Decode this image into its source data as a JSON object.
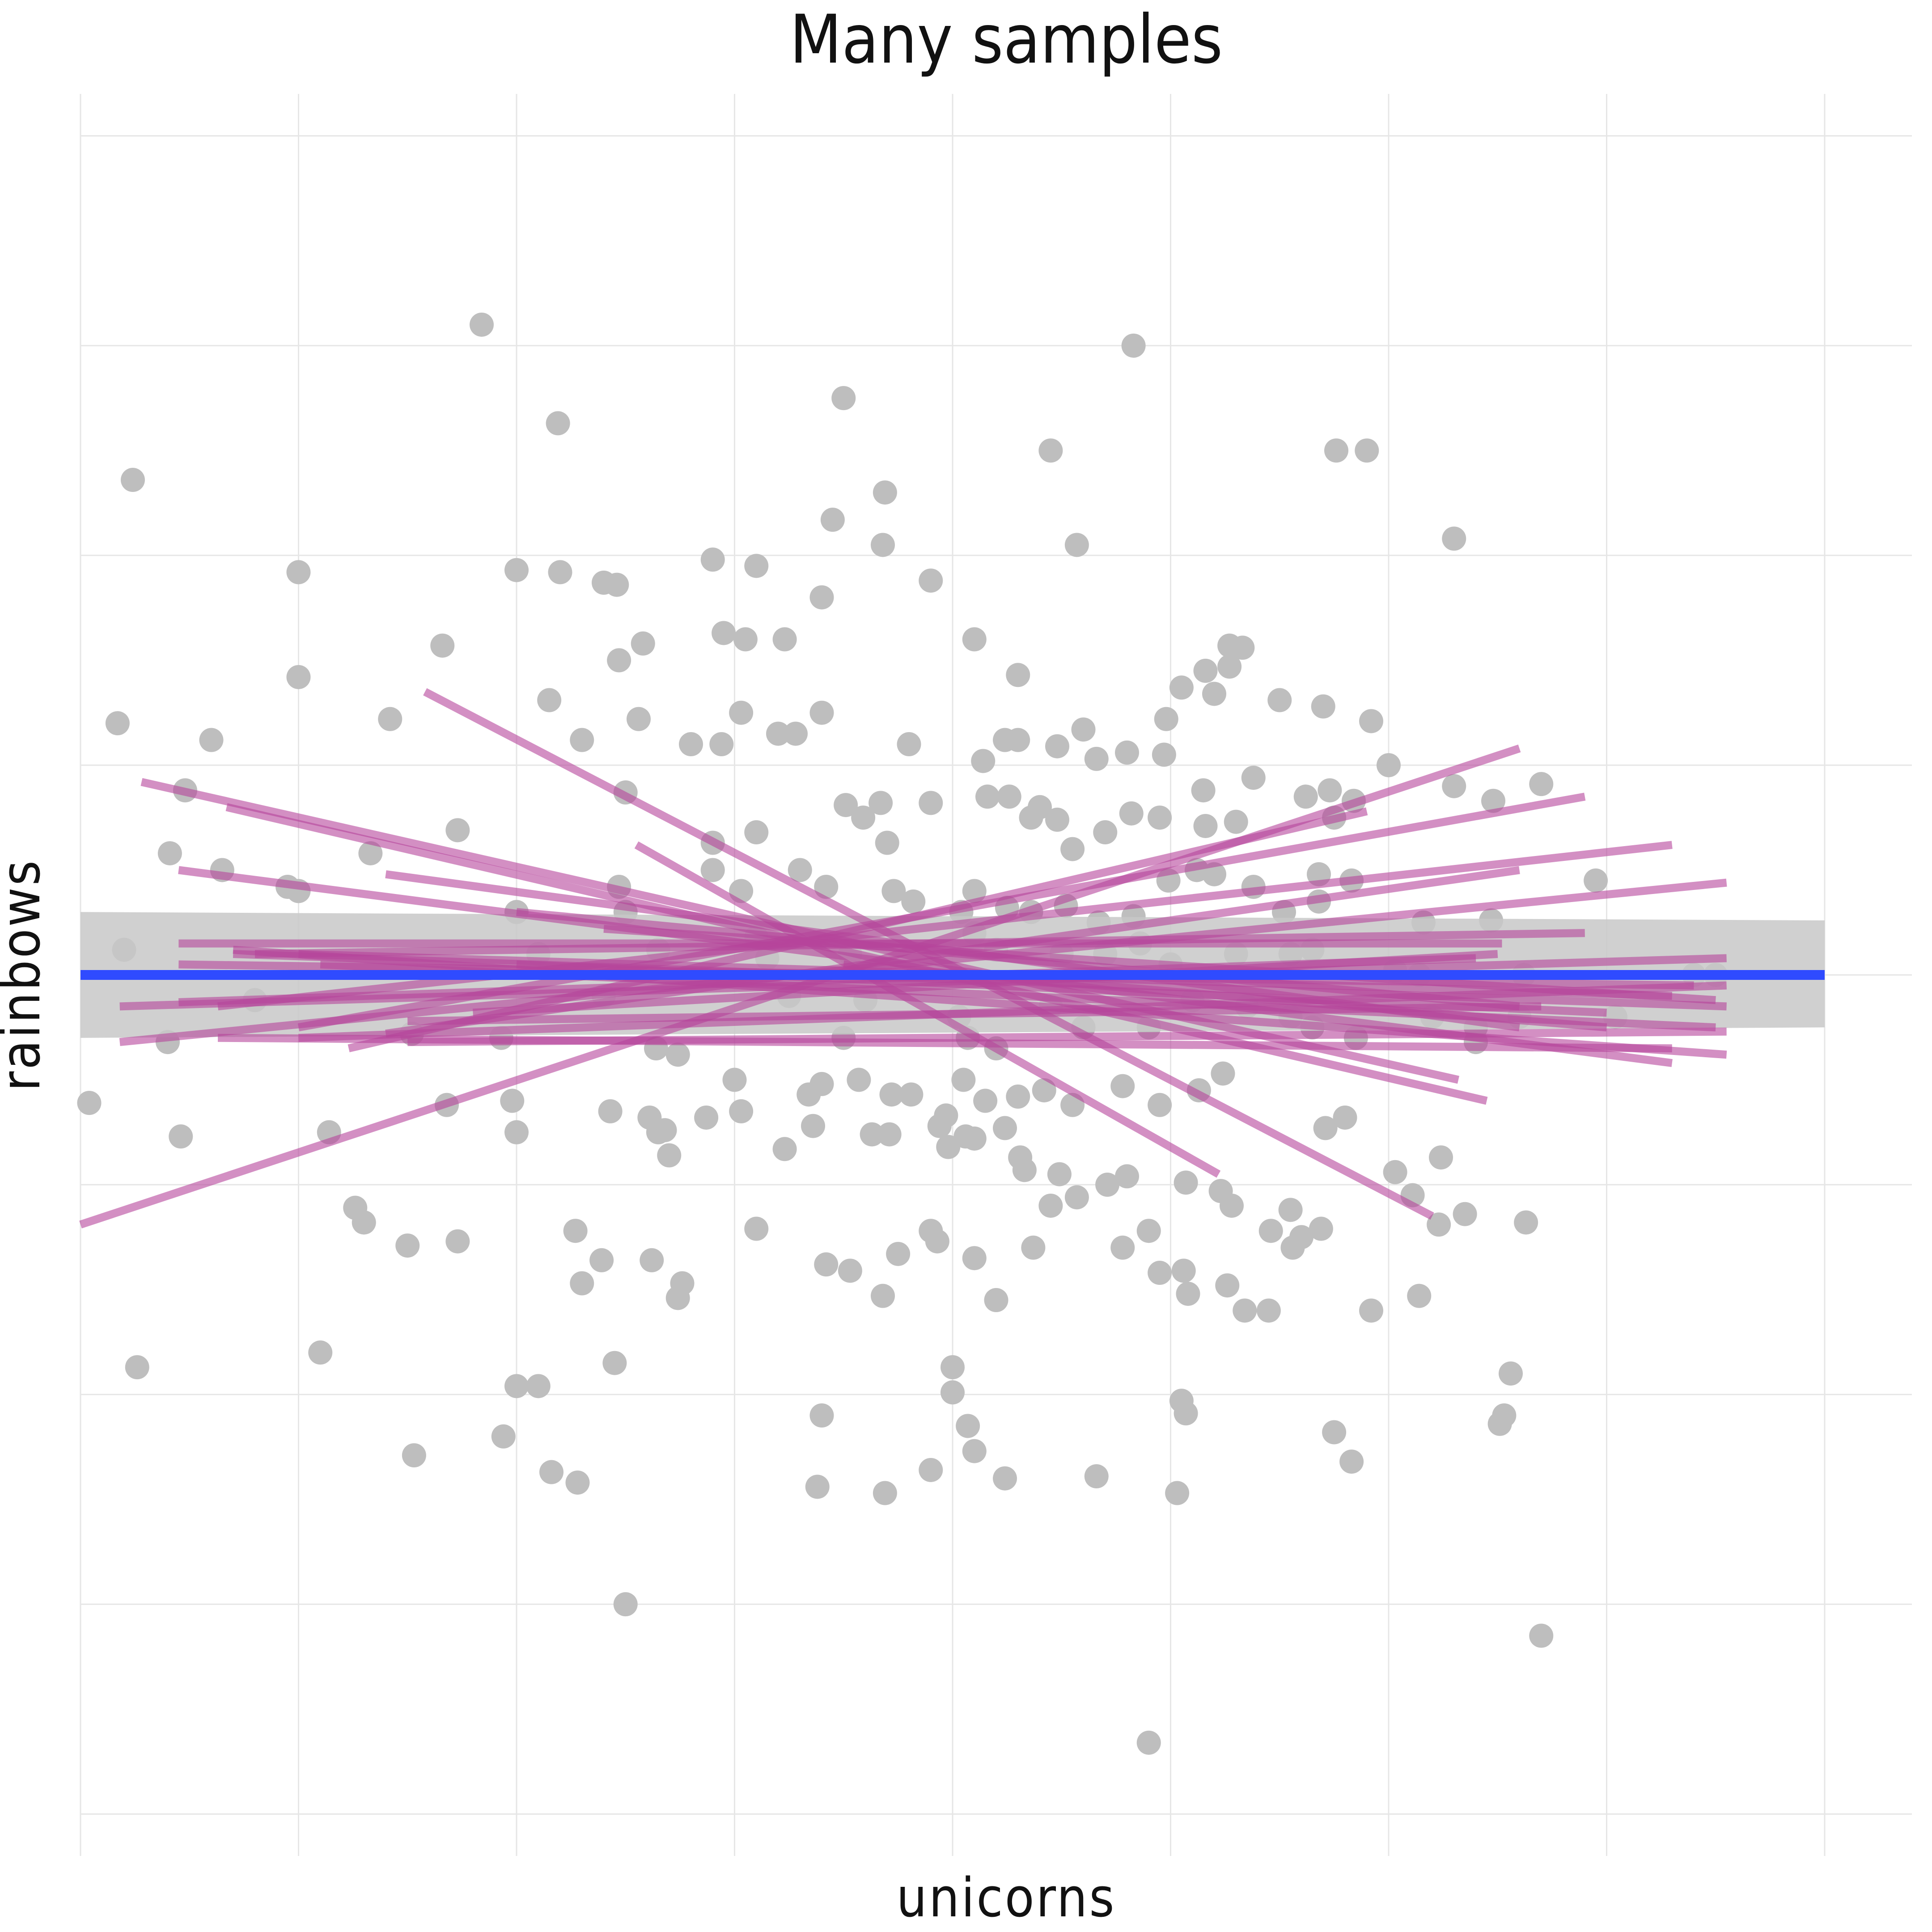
{
  "colors": {
    "points": "#bebebe",
    "sample_lines": "#b5459b",
    "fit_line": "#2f4bff",
    "confidence_band": "#c8c8c8",
    "gridlines": "#e6e6e6",
    "background": "#ffffff"
  },
  "chart_data": {
    "type": "scatter",
    "title": "Many samples",
    "xlabel": "unicorns",
    "ylabel": "rainbows",
    "tick_labels_shown": false,
    "grid": true,
    "xlim": [
      -4.0,
      4.4
    ],
    "ylim": [
      -4.2,
      4.2
    ],
    "x_gridlines": [
      -4,
      -3,
      -2,
      -1,
      0,
      1,
      2,
      3,
      4
    ],
    "y_gridlines": [
      -4,
      -3,
      -2,
      -1,
      0,
      1,
      2,
      3,
      4
    ],
    "points": [
      [
        -2.16,
        3.1
      ],
      [
        -0.5,
        2.75
      ],
      [
        0.83,
        3.0
      ],
      [
        -3.76,
        2.36
      ],
      [
        -1.81,
        2.63
      ],
      [
        -0.31,
        2.3
      ],
      [
        -0.55,
        2.17
      ],
      [
        -0.32,
        2.05
      ],
      [
        0.45,
        2.5
      ],
      [
        1.76,
        2.5
      ],
      [
        1.9,
        2.5
      ],
      [
        -3.0,
        1.92
      ],
      [
        -2.0,
        1.93
      ],
      [
        -1.8,
        1.92
      ],
      [
        -1.6,
        1.87
      ],
      [
        -1.54,
        1.86
      ],
      [
        -1.1,
        1.98
      ],
      [
        -0.9,
        1.95
      ],
      [
        -0.1,
        1.88
      ],
      [
        0.57,
        2.05
      ],
      [
        2.3,
        2.08
      ],
      [
        -3.83,
        1.2
      ],
      [
        -3.0,
        1.42
      ],
      [
        -2.34,
        1.57
      ],
      [
        -1.53,
        1.5
      ],
      [
        -1.42,
        1.58
      ],
      [
        -1.05,
        1.63
      ],
      [
        -0.95,
        1.6
      ],
      [
        -0.77,
        1.6
      ],
      [
        -0.6,
        1.8
      ],
      [
        0.1,
        1.6
      ],
      [
        0.3,
        1.43
      ],
      [
        0.98,
        1.22
      ],
      [
        1.05,
        1.37
      ],
      [
        1.27,
        1.57
      ],
      [
        1.33,
        1.56
      ],
      [
        1.27,
        1.47
      ],
      [
        1.16,
        1.45
      ],
      [
        1.2,
        1.34
      ],
      [
        1.5,
        1.31
      ],
      [
        1.7,
        1.28
      ],
      [
        1.92,
        1.21
      ],
      [
        -3.4,
        1.12
      ],
      [
        -2.58,
        1.22
      ],
      [
        -1.85,
        1.31
      ],
      [
        -1.7,
        1.12
      ],
      [
        -1.44,
        1.22
      ],
      [
        -1.2,
        1.1
      ],
      [
        -1.06,
        1.1
      ],
      [
        -0.97,
        1.25
      ],
      [
        -0.8,
        1.15
      ],
      [
        -0.72,
        1.15
      ],
      [
        -0.6,
        1.25
      ],
      [
        -0.2,
        1.1
      ],
      [
        0.14,
        1.02
      ],
      [
        0.24,
        1.12
      ],
      [
        0.3,
        1.12
      ],
      [
        0.48,
        1.09
      ],
      [
        0.8,
        1.06
      ],
      [
        0.66,
        1.03
      ],
      [
        0.6,
        1.17
      ],
      [
        0.97,
        1.05
      ],
      [
        1.38,
        0.94
      ],
      [
        1.15,
        0.88
      ],
      [
        2.0,
        1.0
      ],
      [
        1.84,
        0.83
      ],
      [
        1.75,
        0.75
      ],
      [
        2.48,
        0.83
      ],
      [
        2.7,
        0.91
      ],
      [
        -3.52,
        0.88
      ],
      [
        -2.27,
        0.69
      ],
      [
        -2.67,
        0.58
      ],
      [
        -1.5,
        0.87
      ],
      [
        -1.1,
        0.63
      ],
      [
        -0.9,
        0.68
      ],
      [
        -0.1,
        0.82
      ],
      [
        -0.33,
        0.82
      ],
      [
        -0.41,
        0.75
      ],
      [
        -0.49,
        0.81
      ],
      [
        -0.3,
        0.63
      ],
      [
        0.16,
        0.85
      ],
      [
        0.26,
        0.85
      ],
      [
        0.36,
        0.75
      ],
      [
        0.4,
        0.8
      ],
      [
        0.48,
        0.74
      ],
      [
        0.55,
        0.6
      ],
      [
        0.7,
        0.68
      ],
      [
        0.82,
        0.77
      ],
      [
        0.95,
        0.75
      ],
      [
        1.16,
        0.71
      ],
      [
        1.3,
        0.73
      ],
      [
        1.62,
        0.85
      ],
      [
        1.73,
        0.88
      ],
      [
        2.3,
        0.9
      ],
      [
        -3.59,
        0.58
      ],
      [
        -3.35,
        0.5
      ],
      [
        -3.05,
        0.42
      ],
      [
        -1.53,
        0.42
      ],
      [
        -1.5,
        0.3
      ],
      [
        -1.1,
        0.5
      ],
      [
        -0.97,
        0.4
      ],
      [
        -0.7,
        0.5
      ],
      [
        -0.58,
        0.42
      ],
      [
        -0.27,
        0.4
      ],
      [
        -0.18,
        0.35
      ],
      [
        0.04,
        0.3
      ],
      [
        0.1,
        0.4
      ],
      [
        0.25,
        0.32
      ],
      [
        0.36,
        0.3
      ],
      [
        0.52,
        0.33
      ],
      [
        0.67,
        0.25
      ],
      [
        0.83,
        0.28
      ],
      [
        0.99,
        0.45
      ],
      [
        1.12,
        0.5
      ],
      [
        1.2,
        0.48
      ],
      [
        1.38,
        0.42
      ],
      [
        1.52,
        0.3
      ],
      [
        1.68,
        0.48
      ],
      [
        1.68,
        0.35
      ],
      [
        1.83,
        0.45
      ],
      [
        2.16,
        0.25
      ],
      [
        2.47,
        0.26
      ],
      [
        2.95,
        0.45
      ],
      [
        -3.8,
        0.12
      ],
      [
        -3.0,
        0.4
      ],
      [
        -2.0,
        0.3
      ],
      [
        -1.9,
        0.1
      ],
      [
        -1.35,
        0.12
      ],
      [
        -0.9,
        0.18
      ],
      [
        -0.85,
        0.08
      ],
      [
        -0.47,
        0.1
      ],
      [
        0.1,
        0.2
      ],
      [
        0.2,
        0.12
      ],
      [
        0.5,
        0.1
      ],
      [
        0.7,
        0.1
      ],
      [
        0.86,
        0.15
      ],
      [
        1.0,
        0.05
      ],
      [
        1.3,
        0.1
      ],
      [
        1.55,
        0.1
      ],
      [
        1.65,
        0.12
      ],
      [
        2.03,
        0.02
      ],
      [
        2.14,
        0.0
      ],
      [
        2.62,
        0.0
      ],
      [
        3.4,
        0.0
      ],
      [
        3.5,
        0.0
      ],
      [
        -3.2,
        -0.12
      ],
      [
        -2.48,
        -0.28
      ],
      [
        -2.07,
        -0.3
      ],
      [
        -1.6,
        -0.1
      ],
      [
        -1.36,
        -0.35
      ],
      [
        -1.26,
        -0.38
      ],
      [
        -0.75,
        -0.1
      ],
      [
        -0.5,
        -0.3
      ],
      [
        -0.4,
        -0.12
      ],
      [
        0.03,
        -0.2
      ],
      [
        0.07,
        -0.3
      ],
      [
        0.2,
        -0.35
      ],
      [
        0.45,
        -0.15
      ],
      [
        0.6,
        -0.25
      ],
      [
        0.9,
        -0.25
      ],
      [
        1.1,
        -0.12
      ],
      [
        1.35,
        -0.15
      ],
      [
        1.55,
        -0.2
      ],
      [
        1.65,
        -0.25
      ],
      [
        1.85,
        -0.3
      ],
      [
        2.2,
        -0.2
      ],
      [
        2.4,
        -0.25
      ],
      [
        2.4,
        -0.32
      ],
      [
        2.6,
        -0.2
      ],
      [
        3.04,
        -0.2
      ],
      [
        -3.6,
        -0.32
      ],
      [
        -2.32,
        -0.62
      ],
      [
        -2.02,
        -0.6
      ],
      [
        -1.57,
        -0.65
      ],
      [
        -1.39,
        -0.68
      ],
      [
        -1.32,
        -0.74
      ],
      [
        -1.13,
        -0.68
      ],
      [
        -1.0,
        -0.5
      ],
      [
        -0.97,
        -0.65
      ],
      [
        -0.66,
        -0.57
      ],
      [
        -0.6,
        -0.52
      ],
      [
        -0.64,
        -0.72
      ],
      [
        -0.43,
        -0.5
      ],
      [
        -0.28,
        -0.57
      ],
      [
        -0.19,
        -0.57
      ],
      [
        -0.03,
        -0.67
      ],
      [
        0.05,
        -0.5
      ],
      [
        0.15,
        -0.6
      ],
      [
        0.3,
        -0.58
      ],
      [
        0.42,
        -0.55
      ],
      [
        0.55,
        -0.62
      ],
      [
        0.78,
        -0.53
      ],
      [
        0.95,
        -0.62
      ],
      [
        1.13,
        -0.55
      ],
      [
        1.24,
        -0.47
      ],
      [
        1.71,
        -0.73
      ],
      [
        1.8,
        -0.68
      ],
      [
        -3.96,
        -0.61
      ],
      [
        -3.54,
        -0.77
      ],
      [
        -2.86,
        -0.75
      ],
      [
        -2.0,
        -0.75
      ],
      [
        -1.3,
        -0.86
      ],
      [
        -1.35,
        -0.75
      ],
      [
        -0.77,
        -0.83
      ],
      [
        -0.37,
        -0.76
      ],
      [
        -0.29,
        -0.76
      ],
      [
        -0.06,
        -0.72
      ],
      [
        -0.02,
        -0.82
      ],
      [
        0.06,
        -0.77
      ],
      [
        0.1,
        -0.78
      ],
      [
        0.24,
        -0.73
      ],
      [
        0.31,
        -0.87
      ],
      [
        0.33,
        -0.93
      ],
      [
        0.71,
        -1.0
      ],
      [
        0.57,
        -1.06
      ],
      [
        0.45,
        -1.1
      ],
      [
        0.49,
        -0.95
      ],
      [
        0.8,
        -0.96
      ],
      [
        1.07,
        -0.99
      ],
      [
        1.23,
        -1.03
      ],
      [
        1.28,
        -1.1
      ],
      [
        1.46,
        -1.22
      ],
      [
        1.55,
        -1.12
      ],
      [
        1.69,
        -1.21
      ],
      [
        1.56,
        -1.3
      ],
      [
        2.03,
        -0.94
      ],
      [
        2.11,
        -1.05
      ],
      [
        2.35,
        -1.14
      ],
      [
        2.23,
        -1.19
      ],
      [
        2.24,
        -0.87
      ],
      [
        2.63,
        -1.18
      ],
      [
        -2.74,
        -1.11
      ],
      [
        -2.7,
        -1.18
      ],
      [
        -2.5,
        -1.29
      ],
      [
        -2.27,
        -1.27
      ],
      [
        -1.73,
        -1.22
      ],
      [
        -1.61,
        -1.36
      ],
      [
        -1.7,
        -1.47
      ],
      [
        -1.38,
        -1.36
      ],
      [
        -1.24,
        -1.47
      ],
      [
        -1.26,
        -1.54
      ],
      [
        -0.9,
        -1.21
      ],
      [
        -0.58,
        -1.38
      ],
      [
        -0.47,
        -1.41
      ],
      [
        -0.32,
        -1.53
      ],
      [
        -0.25,
        -1.33
      ],
      [
        -0.07,
        -1.27
      ],
      [
        -0.1,
        -1.22
      ],
      [
        0.1,
        -1.35
      ],
      [
        0.2,
        -1.55
      ],
      [
        0.37,
        -1.3
      ],
      [
        0.78,
        -1.3
      ],
      [
        0.9,
        -1.22
      ],
      [
        0.95,
        -1.42
      ],
      [
        1.06,
        -1.41
      ],
      [
        1.08,
        -1.52
      ],
      [
        1.26,
        -1.48
      ],
      [
        1.34,
        -1.6
      ],
      [
        1.45,
        -1.6
      ],
      [
        1.6,
        -1.25
      ],
      [
        1.92,
        -1.6
      ],
      [
        2.14,
        -1.53
      ],
      [
        -3.74,
        -1.87
      ],
      [
        -2.9,
        -1.8
      ],
      [
        -2.0,
        -1.96
      ],
      [
        -1.9,
        -1.96
      ],
      [
        -1.55,
        -1.85
      ],
      [
        -0.6,
        -2.1
      ],
      [
        0.0,
        -1.87
      ],
      [
        0.0,
        -1.99
      ],
      [
        0.07,
        -2.15
      ],
      [
        0.1,
        -2.27
      ],
      [
        1.05,
        -2.03
      ],
      [
        1.07,
        -2.09
      ],
      [
        1.75,
        -2.18
      ],
      [
        2.56,
        -1.9
      ],
      [
        2.53,
        -2.1
      ],
      [
        2.51,
        -2.14
      ],
      [
        -2.47,
        -2.29
      ],
      [
        -2.06,
        -2.2
      ],
      [
        -1.84,
        -2.37
      ],
      [
        -1.72,
        -2.42
      ],
      [
        -0.62,
        -2.44
      ],
      [
        -0.31,
        -2.47
      ],
      [
        -0.1,
        -2.36
      ],
      [
        0.24,
        -2.4
      ],
      [
        0.66,
        -2.39
      ],
      [
        1.03,
        -2.47
      ],
      [
        1.83,
        -2.32
      ],
      [
        2.7,
        -3.15
      ],
      [
        -1.5,
        -3.0
      ],
      [
        0.9,
        -3.66
      ]
    ],
    "series": [
      {
        "type": "lines",
        "segments": [
          [
            [
              -3.72,
              0.92
            ],
            [
              2.32,
              -0.5
            ]
          ],
          [
            [
              -3.33,
              0.8
            ],
            [
              2.45,
              -0.6
            ]
          ],
          [
            [
              -2.42,
              1.35
            ],
            [
              2.2,
              -1.15
            ]
          ],
          [
            [
              -1.45,
              0.62
            ],
            [
              1.22,
              -0.95
            ]
          ],
          [
            [
              -3.55,
              0.5
            ],
            [
              3.3,
              -0.42
            ]
          ],
          [
            [
              -3.3,
              0.12
            ],
            [
              3.55,
              -0.38
            ]
          ],
          [
            [
              -2.6,
              0.48
            ],
            [
              2.6,
              -0.25
            ]
          ],
          [
            [
              -2.0,
              0.3
            ],
            [
              2.6,
              -0.15
            ]
          ],
          [
            [
              -3.82,
              -0.32
            ],
            [
              3.55,
              0.44
            ]
          ],
          [
            [
              -3.37,
              -0.15
            ],
            [
              3.3,
              0.62
            ]
          ],
          [
            [
              -4.0,
              -1.19
            ],
            [
              2.6,
              1.08
            ]
          ],
          [
            [
              -3.0,
              -0.25
            ],
            [
              2.9,
              0.85
            ]
          ],
          [
            [
              -2.77,
              -0.35
            ],
            [
              1.9,
              0.78
            ]
          ],
          [
            [
              -3.37,
              -0.3
            ],
            [
              3.3,
              -0.35
            ]
          ],
          [
            [
              -3.82,
              -0.15
            ],
            [
              3.55,
              0.08
            ]
          ],
          [
            [
              -3.0,
              -0.3
            ],
            [
              3.55,
              -0.05
            ]
          ],
          [
            [
              -3.55,
              0.15
            ],
            [
              2.52,
              0.15
            ]
          ],
          [
            [
              -2.9,
              0.05
            ],
            [
              3.5,
              -0.25
            ]
          ],
          [
            [
              -3.55,
              -0.13
            ],
            [
              2.4,
              0.08
            ]
          ],
          [
            [
              -2.5,
              -0.32
            ],
            [
              3.55,
              -0.27
            ]
          ],
          [
            [
              -2.6,
              -0.28
            ],
            [
              2.6,
              0.5
            ]
          ],
          [
            [
              -3.3,
              0.1
            ],
            [
              3.55,
              -0.15
            ]
          ],
          [
            [
              -3.55,
              0.05
            ],
            [
              3.4,
              -0.05
            ]
          ],
          [
            [
              -1.6,
              0.22
            ],
            [
              3.5,
              -0.12
            ]
          ],
          [
            [
              -3.0,
              0.1
            ],
            [
              3.3,
              -0.1
            ]
          ],
          [
            [
              -2.0,
              0.05
            ],
            [
              3.0,
              -0.18
            ]
          ],
          [
            [
              -0.5,
              0.05
            ],
            [
              3.0,
              -0.25
            ]
          ],
          [
            [
              -2.5,
              -0.22
            ],
            [
              2.7,
              -0.15
            ]
          ],
          [
            [
              -3.2,
              0.1
            ],
            [
              2.9,
              0.2
            ]
          ],
          [
            [
              -2.2,
              -0.18
            ],
            [
              2.5,
              0.1
            ]
          ]
        ]
      },
      {
        "type": "regression",
        "name": "",
        "x": [
          -4.0,
          4.0
        ],
        "y": [
          0.0,
          0.0
        ],
        "ci_lower": [
          -0.3,
          -0.25
        ],
        "ci_upper": [
          0.3,
          0.26
        ]
      }
    ]
  }
}
